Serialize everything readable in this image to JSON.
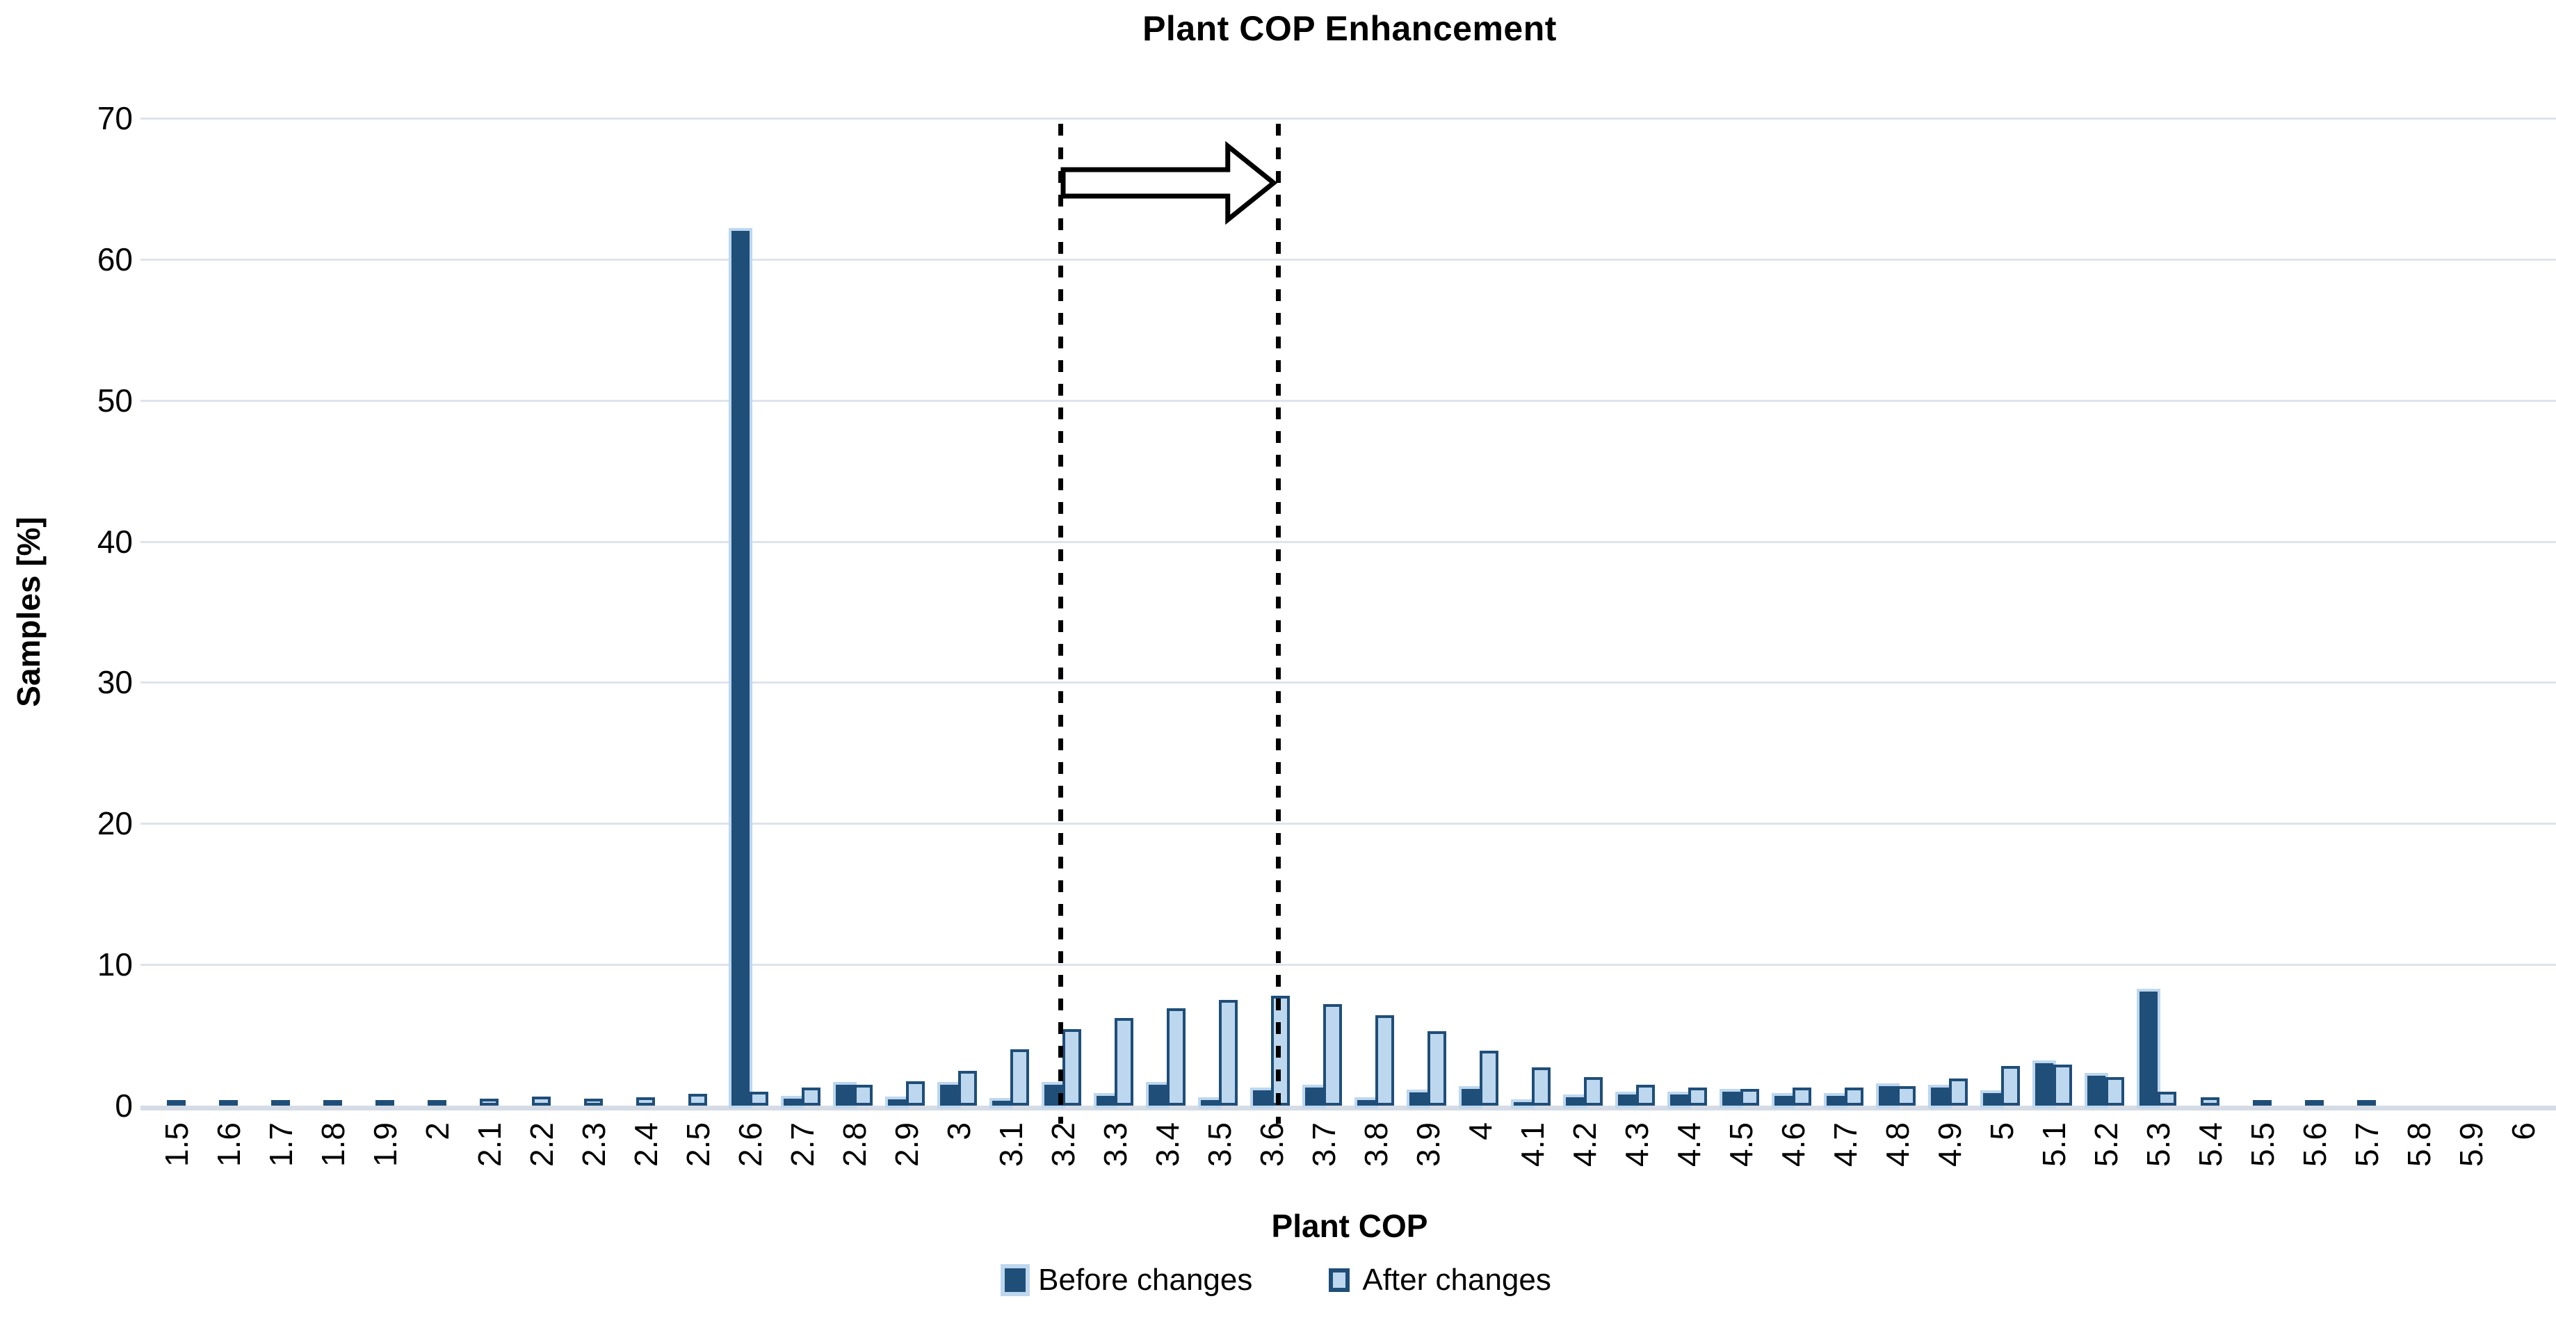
{
  "title": "Plant COP Enhancement",
  "y_axis": {
    "title": "Samples [%]",
    "ticks": [
      0,
      10,
      20,
      30,
      40,
      50,
      60,
      70
    ],
    "max": 70
  },
  "x_axis": {
    "title": "Plant COP"
  },
  "legend": {
    "before_label": "Before changes",
    "after_label": "After changes"
  },
  "colors": {
    "before": "#1f4e79",
    "after_fill": "#bdd7ee",
    "after_border": "#1f4e79",
    "gridline": "#dee3ee",
    "axis_line": "#d5dce6",
    "annotation": "#000000"
  },
  "annotation": {
    "type": "range-arrow",
    "from_category": "3.2",
    "to_category": "3.6",
    "line_style": "dashed",
    "arrow_style": "white block arrow, black outline"
  },
  "chart_data": {
    "type": "bar",
    "title": "Plant COP Enhancement",
    "xlabel": "Plant COP",
    "ylabel": "Samples [%]",
    "ylim": [
      0,
      70
    ],
    "grid": true,
    "legend_position": "bottom-center",
    "categories": [
      "1.5",
      "1.6",
      "1.7",
      "1.8",
      "1.9",
      "2",
      "2.1",
      "2.2",
      "2.3",
      "2.4",
      "2.5",
      "2.6",
      "2.7",
      "2.8",
      "2.9",
      "3",
      "3.1",
      "3.2",
      "3.3",
      "3.4",
      "3.5",
      "3.6",
      "3.7",
      "3.8",
      "3.9",
      "4",
      "4.1",
      "4.2",
      "4.3",
      "4.4",
      "4.5",
      "4.6",
      "4.7",
      "4.8",
      "4.9",
      "5",
      "5.1",
      "5.2",
      "5.3",
      "5.4",
      "5.5",
      "5.6",
      "5.7",
      "5.8",
      "5.9",
      "6"
    ],
    "series": [
      {
        "name": "Before changes",
        "color": "#1f4e79",
        "values": [
          0,
          0,
          0,
          0,
          0,
          0,
          0,
          0,
          0,
          0,
          0,
          62,
          0.5,
          1.5,
          0.45,
          1.5,
          0.35,
          1.5,
          0.7,
          1.5,
          0.4,
          1.1,
          1.3,
          0.4,
          0.95,
          1.2,
          0.2,
          0.6,
          0.8,
          0.8,
          1.0,
          0.7,
          0.7,
          1.4,
          1.3,
          0.9,
          3.0,
          2.1,
          8.1,
          0,
          0,
          0,
          0,
          0,
          0,
          0
        ]
      },
      {
        "name": "After changes",
        "color": "#bdd7ee",
        "values": [
          0.1,
          0.15,
          0.2,
          0.2,
          0.25,
          0.35,
          0.5,
          0.65,
          0.5,
          0.6,
          0.85,
          1.0,
          1.3,
          1.5,
          1.75,
          2.45,
          4.0,
          5.4,
          6.2,
          6.9,
          7.5,
          7.8,
          7.2,
          6.4,
          5.3,
          3.9,
          2.7,
          2.0,
          1.5,
          1.3,
          1.2,
          1.3,
          1.3,
          1.4,
          1.9,
          2.8,
          2.9,
          2.0,
          1.0,
          0.6,
          0.35,
          0.2,
          0.1,
          0,
          0,
          0
        ]
      }
    ],
    "annotations": {
      "dashed_range": [
        "3.2",
        "3.6"
      ]
    }
  }
}
